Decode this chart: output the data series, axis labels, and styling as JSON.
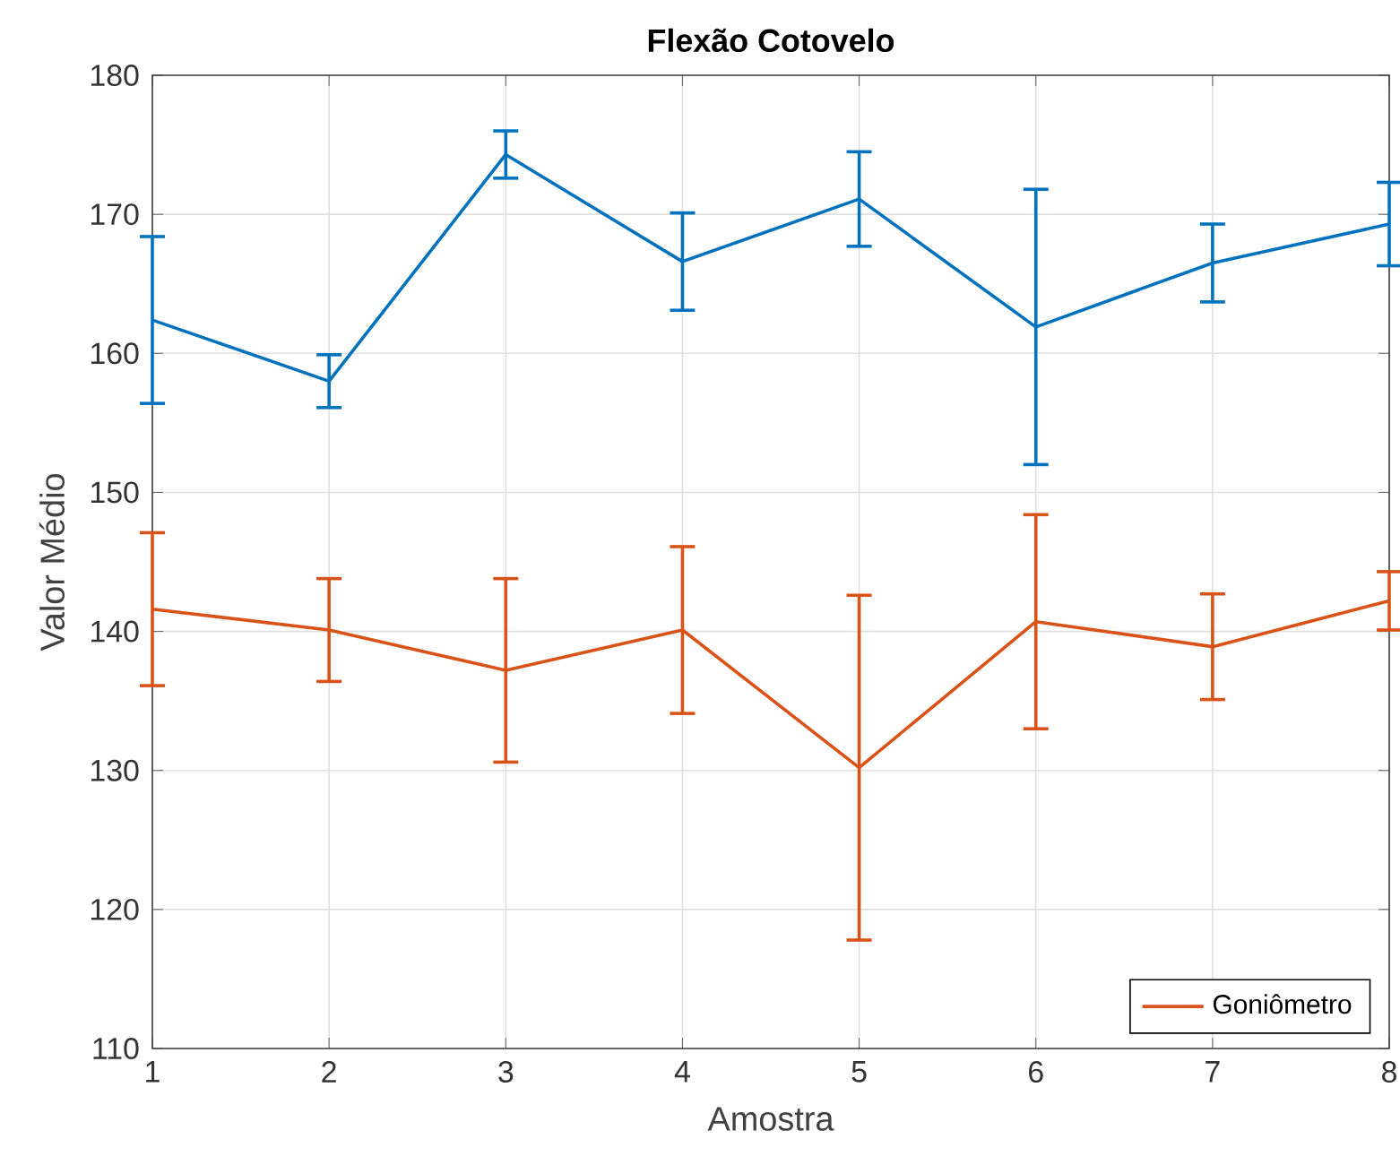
{
  "chart_data": {
    "type": "line",
    "title": "Flexão Cotovelo",
    "xlabel": "Amostra",
    "ylabel": "Valor Médio",
    "x": [
      1,
      2,
      3,
      4,
      5,
      6,
      7,
      8
    ],
    "series": [
      {
        "color": "#0072bd",
        "values": [
          162.4,
          158.0,
          174.3,
          166.6,
          171.1,
          161.9,
          166.5,
          169.3
        ],
        "errors": [
          6.0,
          1.9,
          1.7,
          3.5,
          3.4,
          9.9,
          2.8,
          3.0
        ]
      },
      {
        "name": "Goniômetro",
        "color": "#d95319",
        "values": [
          141.6,
          140.1,
          137.2,
          140.1,
          130.2,
          140.7,
          138.9,
          142.2
        ],
        "errors": [
          5.5,
          3.7,
          6.6,
          6.0,
          12.4,
          7.7,
          3.8,
          2.1
        ]
      }
    ],
    "xlim": [
      1,
      8
    ],
    "xticks": [
      1,
      2,
      3,
      4,
      5,
      6,
      7,
      8
    ],
    "ylim": [
      110,
      180
    ],
    "yticks": [
      110,
      120,
      130,
      140,
      150,
      160,
      170,
      180
    ],
    "grid": true,
    "legend": "bottom right",
    "marker": "none",
    "line_style": "solid"
  }
}
